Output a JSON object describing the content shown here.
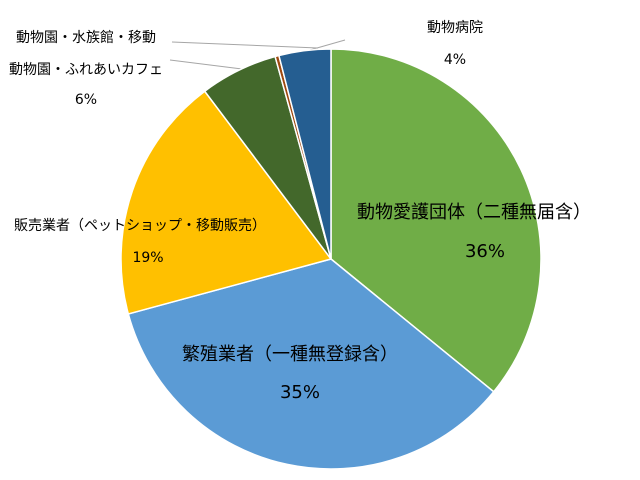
{
  "chart_data": {
    "type": "pie",
    "categories": [
      "動物愛護団体（二種無届含）",
      "繁殖業者（一種無登録含）",
      "販売業者（ペットショップ・移動販売）",
      "動物園・ふれあいカフェ",
      "動物園・水族館・移動",
      "動物病院"
    ],
    "values": [
      36,
      35,
      19,
      6,
      0.3,
      4
    ],
    "value_labels": [
      "36%",
      "35%",
      "19%",
      "6%",
      null,
      "4%"
    ],
    "colors": [
      "#70ad47",
      "#5b9bd5",
      "#ffc000",
      "#43682b",
      "#9e480e",
      "#255e91"
    ]
  }
}
